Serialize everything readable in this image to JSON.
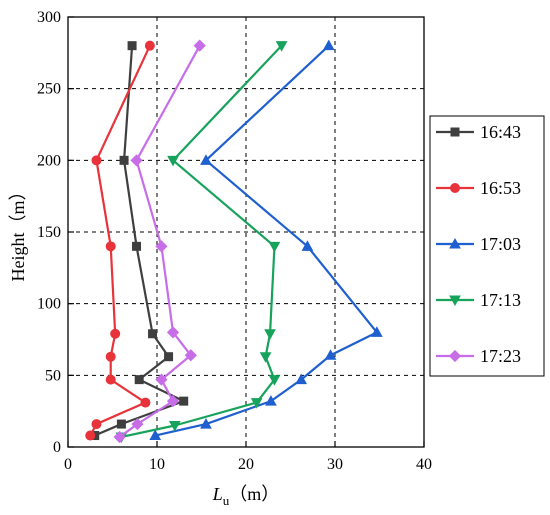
{
  "chart_data": {
    "type": "line",
    "xlabel_main": "L",
    "xlabel_sub": "u",
    "xlabel_unit": "（m）",
    "ylabel": "Height（m）",
    "xlim": [
      0,
      40
    ],
    "ylim": [
      0,
      300
    ],
    "xticks": [
      0,
      10,
      20,
      30,
      40
    ],
    "yticks": [
      0,
      50,
      100,
      150,
      200,
      250,
      300
    ],
    "grid": true,
    "legend_position": "right",
    "series": [
      {
        "name": "16:43",
        "color": "#3f3f3f",
        "marker": "square",
        "points": [
          [
            3.0,
            8
          ],
          [
            6.0,
            16
          ],
          [
            13.0,
            32
          ],
          [
            8.0,
            47
          ],
          [
            11.3,
            63
          ],
          [
            9.5,
            79
          ],
          [
            7.7,
            140
          ],
          [
            6.3,
            200
          ],
          [
            7.2,
            280
          ]
        ]
      },
      {
        "name": "16:53",
        "color": "#e8333a",
        "marker": "circle",
        "points": [
          [
            2.5,
            8
          ],
          [
            3.2,
            16
          ],
          [
            8.7,
            31
          ],
          [
            4.8,
            47
          ],
          [
            4.8,
            63
          ],
          [
            5.3,
            79
          ],
          [
            4.8,
            140
          ],
          [
            3.2,
            200
          ],
          [
            9.2,
            280
          ]
        ]
      },
      {
        "name": "17:03",
        "color": "#1f5fcf",
        "marker": "triangle-up",
        "points": [
          [
            9.8,
            8
          ],
          [
            15.5,
            16
          ],
          [
            22.8,
            32
          ],
          [
            26.2,
            47
          ],
          [
            29.5,
            64
          ],
          [
            34.7,
            80
          ],
          [
            26.9,
            140
          ],
          [
            15.5,
            200
          ],
          [
            29.3,
            280
          ]
        ]
      },
      {
        "name": "17:13",
        "color": "#17a35b",
        "marker": "triangle-down",
        "points": [
          [
            6.0,
            7
          ],
          [
            12.0,
            15
          ],
          [
            21.2,
            31
          ],
          [
            23.2,
            47
          ],
          [
            22.2,
            63
          ],
          [
            22.7,
            79
          ],
          [
            23.2,
            140
          ],
          [
            11.8,
            200
          ],
          [
            24.0,
            280
          ]
        ]
      },
      {
        "name": "17:23",
        "color": "#c86de8",
        "marker": "diamond",
        "points": [
          [
            5.8,
            7
          ],
          [
            7.8,
            16
          ],
          [
            11.8,
            32
          ],
          [
            10.5,
            47
          ],
          [
            13.8,
            64
          ],
          [
            11.8,
            80
          ],
          [
            10.5,
            140
          ],
          [
            7.7,
            200
          ],
          [
            14.8,
            280
          ]
        ]
      }
    ]
  }
}
